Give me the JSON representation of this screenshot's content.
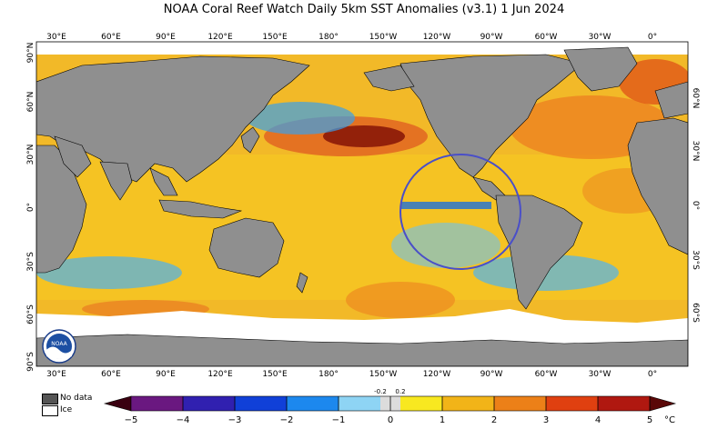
{
  "title": "NOAA Coral Reef Watch Daily 5km SST Anomalies  (v3.1)   1 Jun 2024",
  "map": {
    "lon_labels": [
      "30°E",
      "60°E",
      "90°E",
      "120°E",
      "150°E",
      "180°",
      "150°W",
      "120°W",
      "90°W",
      "60°W",
      "30°W",
      "0°"
    ],
    "lat_labels_left": [
      "90°N",
      "60°N",
      "30°N",
      "0°",
      "30°S",
      "60°S",
      "90°S"
    ],
    "lat_labels_right": [
      "60°N",
      "30°N",
      "0°",
      "30°S",
      "60°S"
    ],
    "logo_text": "NOAA"
  },
  "legend": {
    "no_data_label": "No data",
    "ice_label": "Ice",
    "no_data_color": "#555555",
    "ice_color": "#ffffff"
  },
  "colorbar": {
    "unit": "°C",
    "major_ticks": [
      "−5",
      "−4",
      "−3",
      "−2",
      "−1",
      "0",
      "1",
      "2",
      "3",
      "4",
      "5"
    ],
    "minor_ticks": [
      "-0.2",
      "0.2"
    ]
  },
  "colors": {
    "land": "#8f8f8f",
    "ocean_warm": "#f6c520",
    "ocean_cool": "#3aa0e8",
    "hot": "#b83010",
    "circle": "#4a4fc8"
  }
}
